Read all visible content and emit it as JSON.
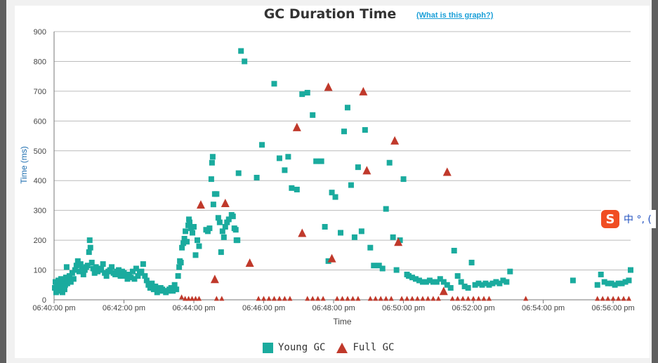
{
  "help_link": "(What is this graph?)",
  "ime": {
    "logo": "S",
    "text": "中 °, ("
  },
  "colors": {
    "young": "#1aab9e",
    "full": "#c0392b",
    "grid": "#bcbcbc",
    "axis": "#777777"
  },
  "chart_data": {
    "type": "scatter",
    "title": "GC Duration Time",
    "xlabel": "Time",
    "ylabel": "Time (ms)",
    "ylim": [
      0,
      900
    ],
    "yticks": [
      0,
      100,
      200,
      300,
      400,
      500,
      600,
      700,
      800,
      900
    ],
    "x_unit": "minutes after 06:40:00 pm",
    "xlim": [
      0,
      16.5
    ],
    "xticks": [
      {
        "x": 0,
        "label": "06:40:00 pm"
      },
      {
        "x": 2,
        "label": "06:42:00 pm"
      },
      {
        "x": 4,
        "label": "06:44:00 pm"
      },
      {
        "x": 6,
        "label": "06:46:00 pm"
      },
      {
        "x": 8,
        "label": "06:48:00 pm"
      },
      {
        "x": 10,
        "label": "06:50:00 pm"
      },
      {
        "x": 12,
        "label": "06:52:00 pm"
      },
      {
        "x": 14,
        "label": "06:54:00 pm"
      },
      {
        "x": 16,
        "label": "06:56:00 pm"
      }
    ],
    "grid": true,
    "legend_position": "bottom",
    "series": [
      {
        "name": "Young GC",
        "marker": "square",
        "points": [
          [
            0.02,
            40
          ],
          [
            0.04,
            60
          ],
          [
            0.06,
            25
          ],
          [
            0.08,
            50
          ],
          [
            0.1,
            35
          ],
          [
            0.12,
            65
          ],
          [
            0.14,
            45
          ],
          [
            0.16,
            30
          ],
          [
            0.18,
            55
          ],
          [
            0.2,
            70
          ],
          [
            0.22,
            40
          ],
          [
            0.24,
            25
          ],
          [
            0.26,
            60
          ],
          [
            0.28,
            45
          ],
          [
            0.3,
            35
          ],
          [
            0.32,
            50
          ],
          [
            0.34,
            75
          ],
          [
            0.36,
            110
          ],
          [
            0.38,
            55
          ],
          [
            0.4,
            65
          ],
          [
            0.44,
            80
          ],
          [
            0.48,
            60
          ],
          [
            0.52,
            90
          ],
          [
            0.56,
            70
          ],
          [
            0.6,
            100
          ],
          [
            0.64,
            115
          ],
          [
            0.68,
            130
          ],
          [
            0.72,
            95
          ],
          [
            0.76,
            120
          ],
          [
            0.8,
            105
          ],
          [
            0.84,
            85
          ],
          [
            0.88,
            100
          ],
          [
            0.92,
            110
          ],
          [
            0.96,
            115
          ],
          [
            1.0,
            160
          ],
          [
            1.02,
            200
          ],
          [
            1.04,
            175
          ],
          [
            1.08,
            125
          ],
          [
            1.12,
            105
          ],
          [
            1.16,
            90
          ],
          [
            1.2,
            110
          ],
          [
            1.25,
            95
          ],
          [
            1.3,
            100
          ],
          [
            1.35,
            105
          ],
          [
            1.4,
            120
          ],
          [
            1.45,
            90
          ],
          [
            1.5,
            80
          ],
          [
            1.55,
            95
          ],
          [
            1.6,
            100
          ],
          [
            1.65,
            110
          ],
          [
            1.7,
            90
          ],
          [
            1.75,
            85
          ],
          [
            1.8,
            95
          ],
          [
            1.85,
            100
          ],
          [
            1.9,
            80
          ],
          [
            1.95,
            95
          ],
          [
            2.0,
            90
          ],
          [
            2.05,
            80
          ],
          [
            2.1,
            70
          ],
          [
            2.15,
            85
          ],
          [
            2.2,
            75
          ],
          [
            2.25,
            95
          ],
          [
            2.3,
            70
          ],
          [
            2.35,
            105
          ],
          [
            2.4,
            80
          ],
          [
            2.45,
            90
          ],
          [
            2.5,
            95
          ],
          [
            2.55,
            120
          ],
          [
            2.6,
            80
          ],
          [
            2.65,
            65
          ],
          [
            2.7,
            50
          ],
          [
            2.75,
            40
          ],
          [
            2.8,
            55
          ],
          [
            2.85,
            35
          ],
          [
            2.9,
            45
          ],
          [
            2.95,
            25
          ],
          [
            3.0,
            30
          ],
          [
            3.05,
            40
          ],
          [
            3.1,
            35
          ],
          [
            3.15,
            30
          ],
          [
            3.2,
            25
          ],
          [
            3.25,
            30
          ],
          [
            3.3,
            35
          ],
          [
            3.35,
            40
          ],
          [
            3.4,
            30
          ],
          [
            3.45,
            50
          ],
          [
            3.5,
            35
          ],
          [
            3.55,
            80
          ],
          [
            3.58,
            110
          ],
          [
            3.6,
            130
          ],
          [
            3.63,
            125
          ],
          [
            3.66,
            175
          ],
          [
            3.7,
            190
          ],
          [
            3.73,
            205
          ],
          [
            3.76,
            230
          ],
          [
            3.8,
            195
          ],
          [
            3.84,
            250
          ],
          [
            3.86,
            270
          ],
          [
            3.88,
            260
          ],
          [
            3.92,
            240
          ],
          [
            3.96,
            225
          ],
          [
            4.0,
            245
          ],
          [
            4.05,
            150
          ],
          [
            4.1,
            200
          ],
          [
            4.15,
            180
          ],
          [
            4.35,
            235
          ],
          [
            4.4,
            230
          ],
          [
            4.45,
            240
          ],
          [
            4.5,
            405
          ],
          [
            4.52,
            460
          ],
          [
            4.54,
            480
          ],
          [
            4.56,
            320
          ],
          [
            4.6,
            355
          ],
          [
            4.65,
            355
          ],
          [
            4.7,
            275
          ],
          [
            4.74,
            260
          ],
          [
            4.78,
            160
          ],
          [
            4.82,
            230
          ],
          [
            4.86,
            210
          ],
          [
            4.9,
            245
          ],
          [
            4.95,
            260
          ],
          [
            5.0,
            270
          ],
          [
            5.08,
            285
          ],
          [
            5.12,
            280
          ],
          [
            5.16,
            240
          ],
          [
            5.2,
            235
          ],
          [
            5.22,
            200
          ],
          [
            5.25,
            200
          ],
          [
            5.28,
            425
          ],
          [
            5.35,
            835
          ],
          [
            5.45,
            800
          ],
          [
            5.8,
            410
          ],
          [
            5.95,
            520
          ],
          [
            6.3,
            725
          ],
          [
            6.45,
            475
          ],
          [
            6.6,
            435
          ],
          [
            6.7,
            480
          ],
          [
            6.8,
            375
          ],
          [
            6.95,
            370
          ],
          [
            7.1,
            690
          ],
          [
            7.25,
            695
          ],
          [
            7.4,
            620
          ],
          [
            7.5,
            465
          ],
          [
            7.65,
            465
          ],
          [
            7.75,
            245
          ],
          [
            7.85,
            130
          ],
          [
            7.95,
            360
          ],
          [
            8.05,
            345
          ],
          [
            8.2,
            225
          ],
          [
            8.3,
            565
          ],
          [
            8.4,
            645
          ],
          [
            8.5,
            385
          ],
          [
            8.6,
            210
          ],
          [
            8.7,
            445
          ],
          [
            8.8,
            230
          ],
          [
            8.9,
            570
          ],
          [
            9.05,
            175
          ],
          [
            9.15,
            115
          ],
          [
            9.3,
            115
          ],
          [
            9.4,
            105
          ],
          [
            9.5,
            305
          ],
          [
            9.6,
            460
          ],
          [
            9.7,
            210
          ],
          [
            9.8,
            100
          ],
          [
            9.9,
            200
          ],
          [
            10.0,
            405
          ],
          [
            10.1,
            85
          ],
          [
            10.15,
            80
          ],
          [
            10.25,
            75
          ],
          [
            10.35,
            70
          ],
          [
            10.45,
            65
          ],
          [
            10.55,
            60
          ],
          [
            10.65,
            60
          ],
          [
            10.75,
            65
          ],
          [
            10.85,
            60
          ],
          [
            10.95,
            60
          ],
          [
            11.05,
            70
          ],
          [
            11.15,
            60
          ],
          [
            11.25,
            50
          ],
          [
            11.35,
            40
          ],
          [
            11.45,
            165
          ],
          [
            11.55,
            80
          ],
          [
            11.65,
            60
          ],
          [
            11.75,
            45
          ],
          [
            11.85,
            40
          ],
          [
            11.95,
            125
          ],
          [
            12.05,
            50
          ],
          [
            12.15,
            55
          ],
          [
            12.25,
            50
          ],
          [
            12.35,
            55
          ],
          [
            12.45,
            50
          ],
          [
            12.55,
            55
          ],
          [
            12.65,
            60
          ],
          [
            12.75,
            55
          ],
          [
            12.85,
            65
          ],
          [
            12.95,
            60
          ],
          [
            13.05,
            95
          ],
          [
            14.85,
            65
          ],
          [
            15.55,
            50
          ],
          [
            15.65,
            85
          ],
          [
            15.75,
            60
          ],
          [
            15.85,
            55
          ],
          [
            15.95,
            55
          ],
          [
            16.05,
            50
          ],
          [
            16.15,
            55
          ],
          [
            16.25,
            55
          ],
          [
            16.35,
            60
          ],
          [
            16.45,
            65
          ],
          [
            16.5,
            100
          ]
        ]
      },
      {
        "name": "Full GC",
        "marker": "triangle",
        "points": [
          [
            3.65,
            10
          ],
          [
            3.75,
            5
          ],
          [
            3.85,
            5
          ],
          [
            3.95,
            5
          ],
          [
            4.05,
            5
          ],
          [
            4.15,
            5
          ],
          [
            4.2,
            320
          ],
          [
            4.6,
            70
          ],
          [
            4.65,
            5
          ],
          [
            4.8,
            5
          ],
          [
            4.9,
            325
          ],
          [
            5.6,
            125
          ],
          [
            5.85,
            5
          ],
          [
            6.0,
            5
          ],
          [
            6.15,
            5
          ],
          [
            6.3,
            5
          ],
          [
            6.45,
            5
          ],
          [
            6.6,
            5
          ],
          [
            6.75,
            5
          ],
          [
            6.95,
            580
          ],
          [
            7.1,
            225
          ],
          [
            7.25,
            5
          ],
          [
            7.4,
            5
          ],
          [
            7.55,
            5
          ],
          [
            7.7,
            5
          ],
          [
            7.85,
            715
          ],
          [
            7.95,
            140
          ],
          [
            8.1,
            5
          ],
          [
            8.25,
            5
          ],
          [
            8.4,
            5
          ],
          [
            8.55,
            5
          ],
          [
            8.7,
            5
          ],
          [
            8.85,
            700
          ],
          [
            8.95,
            435
          ],
          [
            9.05,
            5
          ],
          [
            9.2,
            5
          ],
          [
            9.35,
            5
          ],
          [
            9.5,
            5
          ],
          [
            9.65,
            5
          ],
          [
            9.75,
            535
          ],
          [
            9.85,
            195
          ],
          [
            9.95,
            5
          ],
          [
            10.1,
            5
          ],
          [
            10.25,
            5
          ],
          [
            10.4,
            5
          ],
          [
            10.55,
            5
          ],
          [
            10.7,
            5
          ],
          [
            10.85,
            5
          ],
          [
            11.0,
            5
          ],
          [
            11.15,
            30
          ],
          [
            11.25,
            430
          ],
          [
            11.4,
            5
          ],
          [
            11.55,
            5
          ],
          [
            11.7,
            5
          ],
          [
            11.85,
            5
          ],
          [
            12.0,
            5
          ],
          [
            12.15,
            5
          ],
          [
            12.3,
            5
          ],
          [
            12.45,
            5
          ],
          [
            13.5,
            5
          ],
          [
            15.55,
            5
          ],
          [
            15.7,
            5
          ],
          [
            15.85,
            5
          ],
          [
            16.0,
            5
          ],
          [
            16.15,
            5
          ],
          [
            16.3,
            5
          ],
          [
            16.45,
            5
          ]
        ]
      }
    ]
  }
}
